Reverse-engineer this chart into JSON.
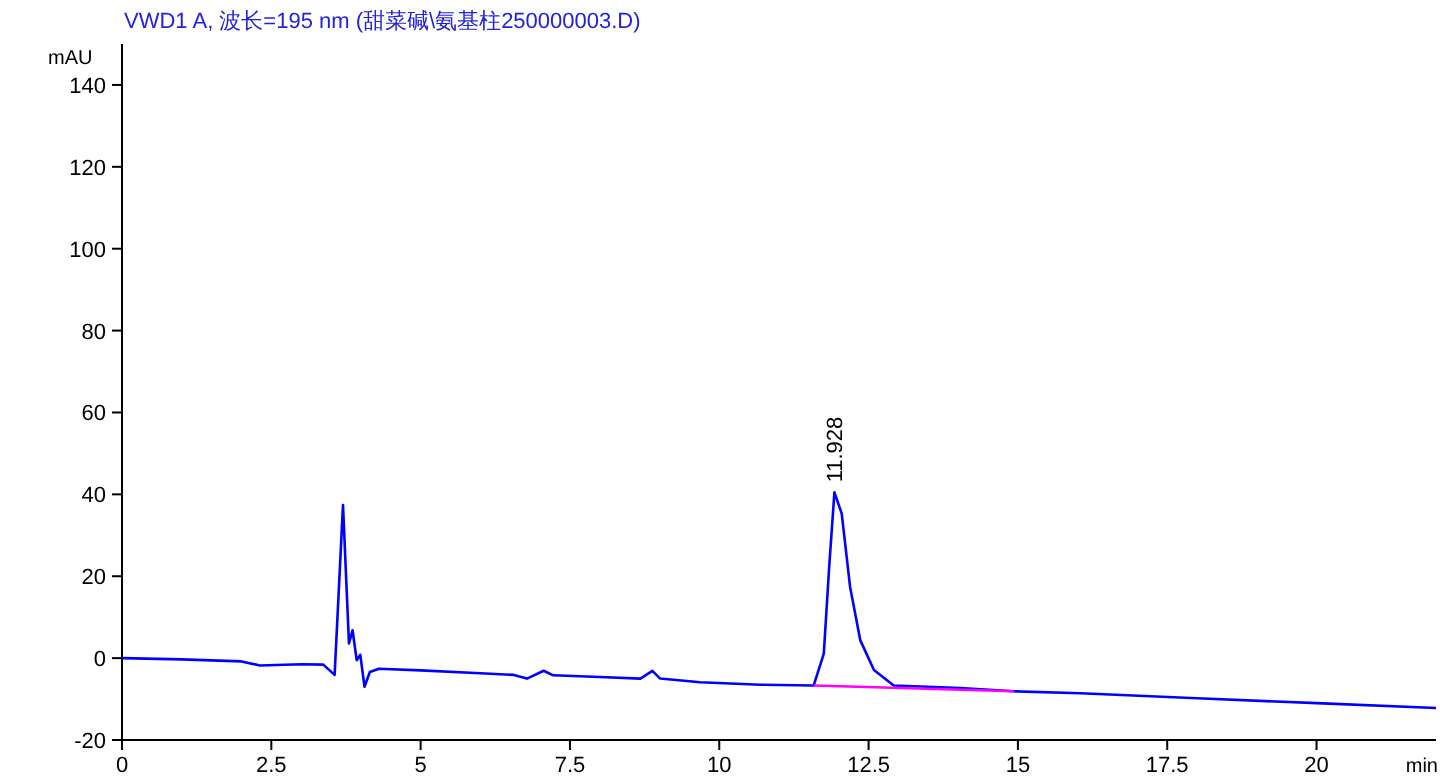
{
  "chart_data": {
    "type": "line",
    "title": "VWD1 A, 波长=195 nm (甜菜碱\\氨基柱250000003.D)",
    "xlabel": "min",
    "ylabel": "mAU",
    "xlim": [
      0,
      22
    ],
    "ylim": [
      -20,
      150
    ],
    "xticks": [
      0,
      2.5,
      5,
      7.5,
      10,
      12.5,
      15,
      17.5,
      20
    ],
    "yticks": [
      -20,
      0,
      20,
      40,
      60,
      80,
      100,
      120,
      140
    ],
    "series": [
      {
        "color": "#0000ff",
        "x": [
          0,
          1,
          2,
          2.31,
          3,
          3.37,
          3.56,
          3.7,
          3.8,
          3.86,
          3.93,
          3.99,
          4.06,
          4.15,
          4.3,
          5,
          6,
          6.56,
          6.78,
          7.06,
          7.22,
          8,
          8.68,
          8.88,
          9.01,
          9.68,
          10.69,
          11.58,
          11.75,
          11.84,
          11.928,
          12.05,
          12.19,
          12.36,
          12.59,
          12.92,
          14.04,
          14.93,
          16.05,
          18,
          20,
          22
        ],
        "values": [
          0,
          -0.3,
          -0.8,
          -1.8,
          -1.5,
          -1.6,
          -4.1,
          37.4,
          3.6,
          6.8,
          -0.5,
          0.8,
          -7,
          -3.4,
          -2.6,
          -3,
          -3.7,
          -4.1,
          -5,
          -3.1,
          -4.2,
          -4.6,
          -5,
          -3.1,
          -5,
          -5.9,
          -6.5,
          -6.7,
          1.1,
          22.3,
          40.5,
          35.3,
          17.4,
          4.4,
          -2.9,
          -6.7,
          -7.3,
          -8.1,
          -8.6,
          -9.8,
          -11,
          -12.2
        ]
      },
      {
        "color": "#ff00ff",
        "x": [
          11.58,
          14.93
        ],
        "values": [
          -6.7,
          -8.1
        ]
      }
    ],
    "annotations": [
      {
        "text": "11.928",
        "x": 11.928,
        "y": 40.5
      }
    ]
  }
}
